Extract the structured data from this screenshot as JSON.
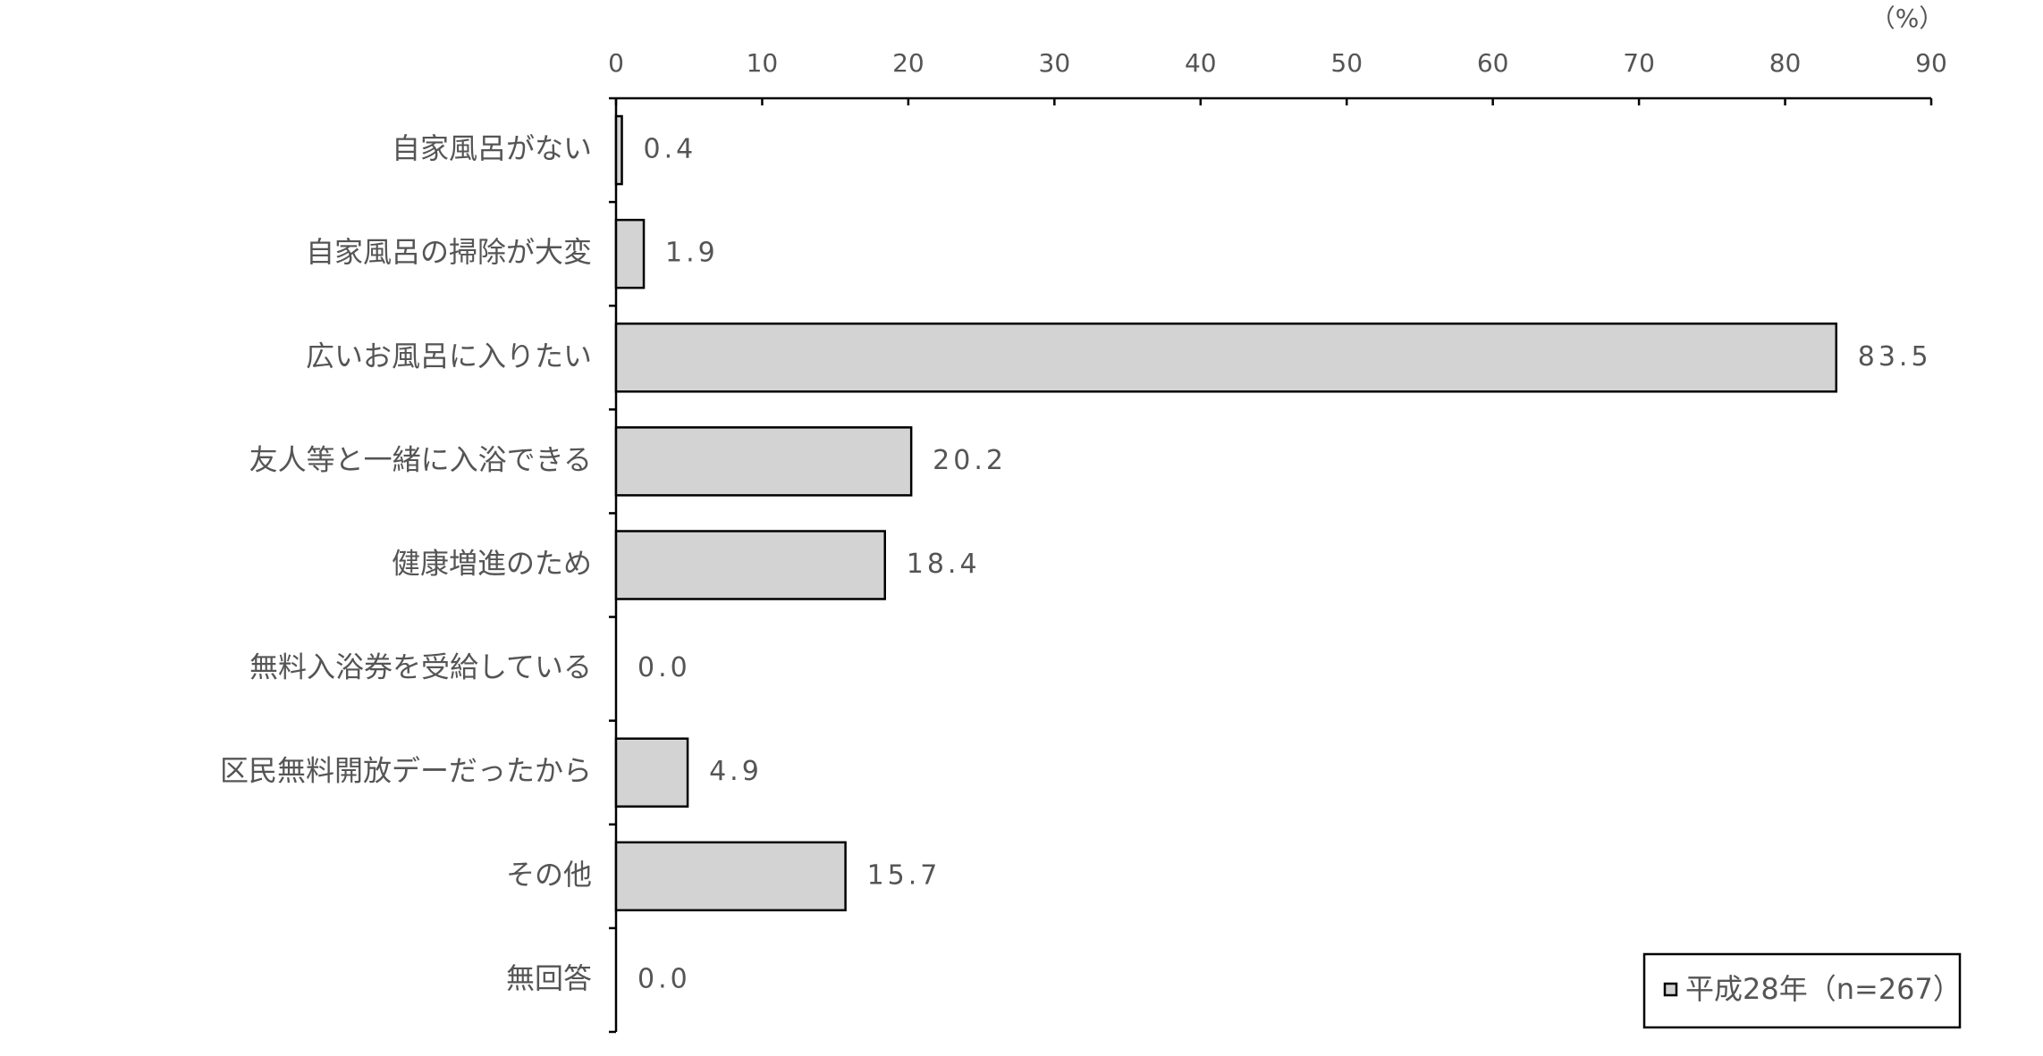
{
  "chart_data": {
    "type": "bar",
    "orientation": "horizontal",
    "unit": "（%）",
    "categories": [
      "自家風呂がない",
      "自家風呂の掃除が大変",
      "広いお風呂に入りたい",
      "友人等と一緒に入浴できる",
      "健康増進のため",
      "無料入浴券を受給している",
      "区民無料開放デーだったから",
      "その他",
      "無回答"
    ],
    "series": [
      {
        "name": "平成28年（n=267）",
        "color": "#d3d3d3",
        "values": [
          0.4,
          1.9,
          83.5,
          20.2,
          18.4,
          0,
          4.9,
          15.7,
          0
        ],
        "value_labels": [
          "0.4",
          "1.9",
          "83.5",
          "20.2",
          "18.4",
          "0.0",
          "4.9",
          "15.7",
          "0.0"
        ]
      }
    ],
    "xlim": [
      0,
      90
    ],
    "xticks": [
      0,
      10,
      20,
      30,
      40,
      50,
      60,
      70,
      80,
      90
    ],
    "legend": "bottom-right"
  }
}
